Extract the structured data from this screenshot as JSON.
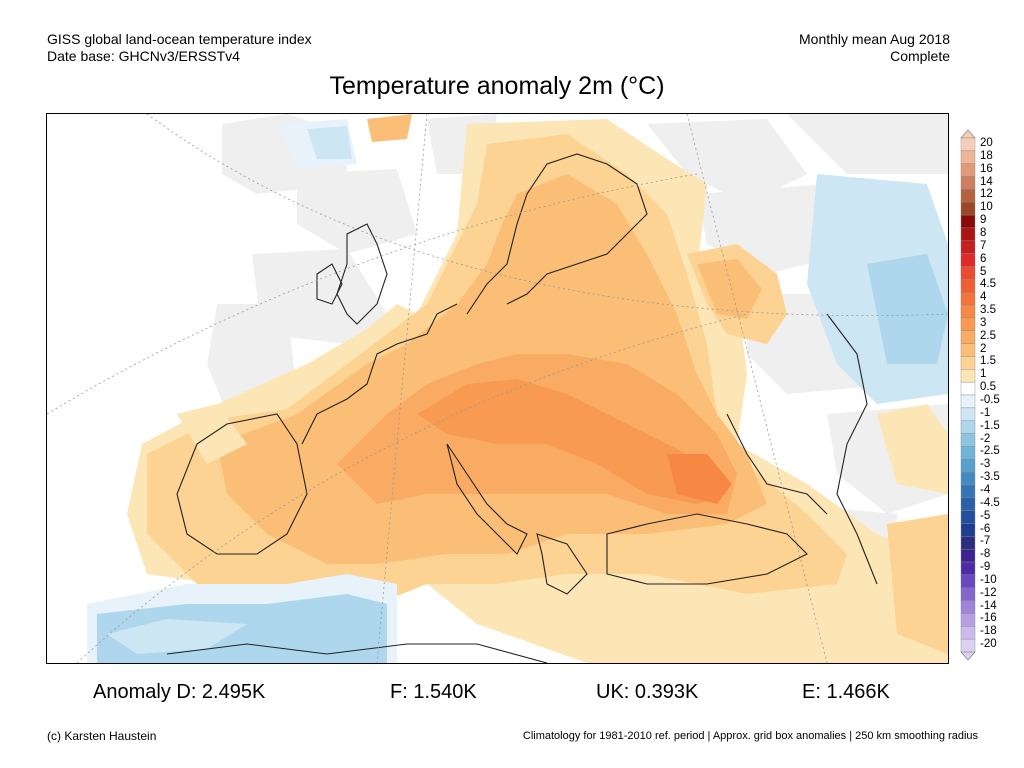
{
  "header": {
    "left_line1": "GISS global land-ocean temperature index",
    "left_line2": "Date base: GHCNv3/ERSSTv4",
    "right_line1": "Monthly mean Aug 2018",
    "right_line2": "Complete"
  },
  "title": "Temperature anomaly 2m (°C)",
  "legend": {
    "levels": [
      {
        "label": "20",
        "color": "#f6cdb8"
      },
      {
        "label": "18",
        "color": "#eeb496"
      },
      {
        "label": "16",
        "color": "#e09a7a"
      },
      {
        "label": "14",
        "color": "#cc7e5e"
      },
      {
        "label": "12",
        "color": "#b4623f"
      },
      {
        "label": "10",
        "color": "#9a4826"
      },
      {
        "label": "9",
        "color": "#8a0a0a"
      },
      {
        "label": "8",
        "color": "#ad1414"
      },
      {
        "label": "7",
        "color": "#c81e1e"
      },
      {
        "label": "6",
        "color": "#e02a2a"
      },
      {
        "label": "5",
        "color": "#ec4a2e"
      },
      {
        "label": "4.5",
        "color": "#f05f34"
      },
      {
        "label": "4",
        "color": "#f3743c"
      },
      {
        "label": "3.5",
        "color": "#f68844"
      },
      {
        "label": "3",
        "color": "#f89a52"
      },
      {
        "label": "2.5",
        "color": "#f9ab63"
      },
      {
        "label": "2",
        "color": "#fbbe77"
      },
      {
        "label": "1.5",
        "color": "#fcd392"
      },
      {
        "label": "1",
        "color": "#fde6b6"
      },
      {
        "label": "0.5",
        "color": "#ffffff"
      },
      {
        "label": "-0.5",
        "color": "#e7f2fb"
      },
      {
        "label": "-1",
        "color": "#cde6f4"
      },
      {
        "label": "-1.5",
        "color": "#aed6ec"
      },
      {
        "label": "-2",
        "color": "#8fc5e3"
      },
      {
        "label": "-2.5",
        "color": "#72b3da"
      },
      {
        "label": "-3",
        "color": "#5aa0cf"
      },
      {
        "label": "-3.5",
        "color": "#468ac2"
      },
      {
        "label": "-4",
        "color": "#3574b4"
      },
      {
        "label": "-4.5",
        "color": "#2a60a8"
      },
      {
        "label": "-5",
        "color": "#23509c"
      },
      {
        "label": "-6",
        "color": "#1e3f8e"
      },
      {
        "label": "-7",
        "color": "#2a2f80"
      },
      {
        "label": "-8",
        "color": "#3a2490"
      },
      {
        "label": "-9",
        "color": "#4d2aa8"
      },
      {
        "label": "-10",
        "color": "#6a48c0"
      },
      {
        "label": "-12",
        "color": "#8466cc"
      },
      {
        "label": "-14",
        "color": "#9e84d8"
      },
      {
        "label": "-16",
        "color": "#b6a0e2"
      },
      {
        "label": "-18",
        "color": "#cbbaec"
      },
      {
        "label": "-20",
        "color": "#ddd2f4"
      }
    ]
  },
  "anomalies": {
    "d": "Anomaly D: 2.495K",
    "f": "F: 1.540K",
    "uk": "UK: 0.393K",
    "e": "E: 1.466K"
  },
  "footer": {
    "credit": "(c) Karsten Haustein",
    "note": "Climatology for 1981-2010 ref. period | Approx. grid box anomalies | 250 km smoothing radius"
  }
}
